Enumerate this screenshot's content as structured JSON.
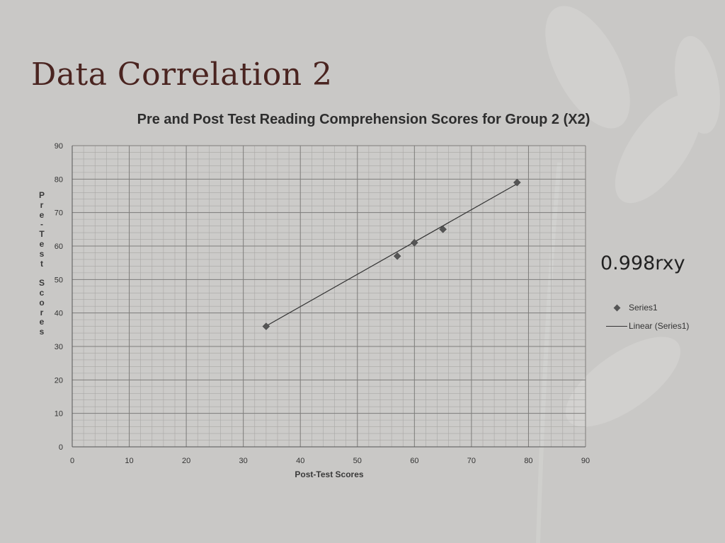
{
  "slide": {
    "title": "Data Correlation 2",
    "correlation_text": "0.998rxy"
  },
  "chart_data": {
    "type": "scatter",
    "title": "Pre and Post Test Reading Comprehension Scores for Group 2 (X2)",
    "xlabel": "Post-Test Scores",
    "ylabel": "Pre-Test Scores",
    "xlim": [
      0,
      90
    ],
    "ylim": [
      0,
      90
    ],
    "x_ticks": [
      0,
      10,
      20,
      30,
      40,
      50,
      60,
      70,
      80,
      90
    ],
    "y_ticks": [
      0,
      10,
      20,
      30,
      40,
      50,
      60,
      70,
      80,
      90
    ],
    "grid": true,
    "legend_position": "right",
    "series": [
      {
        "name": "Series1",
        "marker": "diamond",
        "color": "#555555",
        "x": [
          34,
          57,
          60,
          65,
          78
        ],
        "y": [
          36,
          57,
          61,
          65,
          79
        ]
      }
    ],
    "trendline": {
      "name": "Linear (Series1)",
      "type": "linear",
      "color": "#333333",
      "x": [
        34,
        78
      ],
      "y": [
        36.1,
        78.6
      ]
    }
  }
}
